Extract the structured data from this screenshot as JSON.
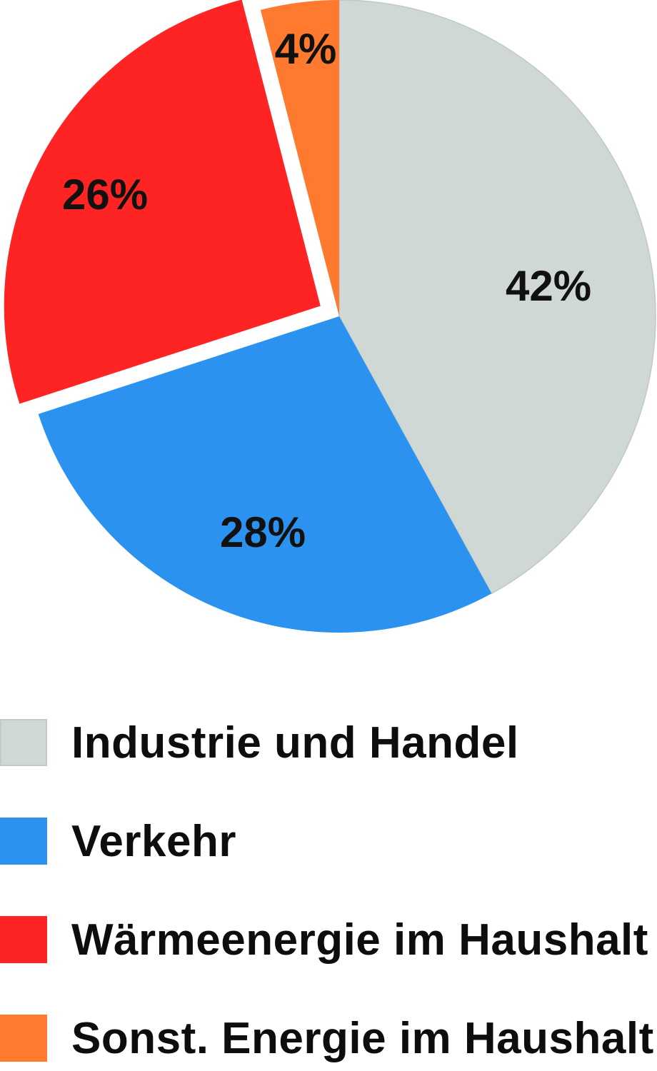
{
  "chart_data": {
    "type": "pie",
    "title": "",
    "categories": [
      "Industrie und Handel",
      "Verkehr",
      "Wärmeenergie im Haushalt",
      "Sonst. Energie im Haushalt"
    ],
    "values": [
      42,
      28,
      26,
      4
    ],
    "labels": [
      "42%",
      "28%",
      "26%",
      "4%"
    ],
    "colors": [
      "#cfd8d5",
      "#2b93ef",
      "#ff2424",
      "#ff7a2e"
    ],
    "exploded": [
      false,
      false,
      true,
      false
    ],
    "start_angle": "12 o'clock",
    "direction": "clockwise",
    "legend_placement": "bottom-left",
    "unit": "%"
  }
}
